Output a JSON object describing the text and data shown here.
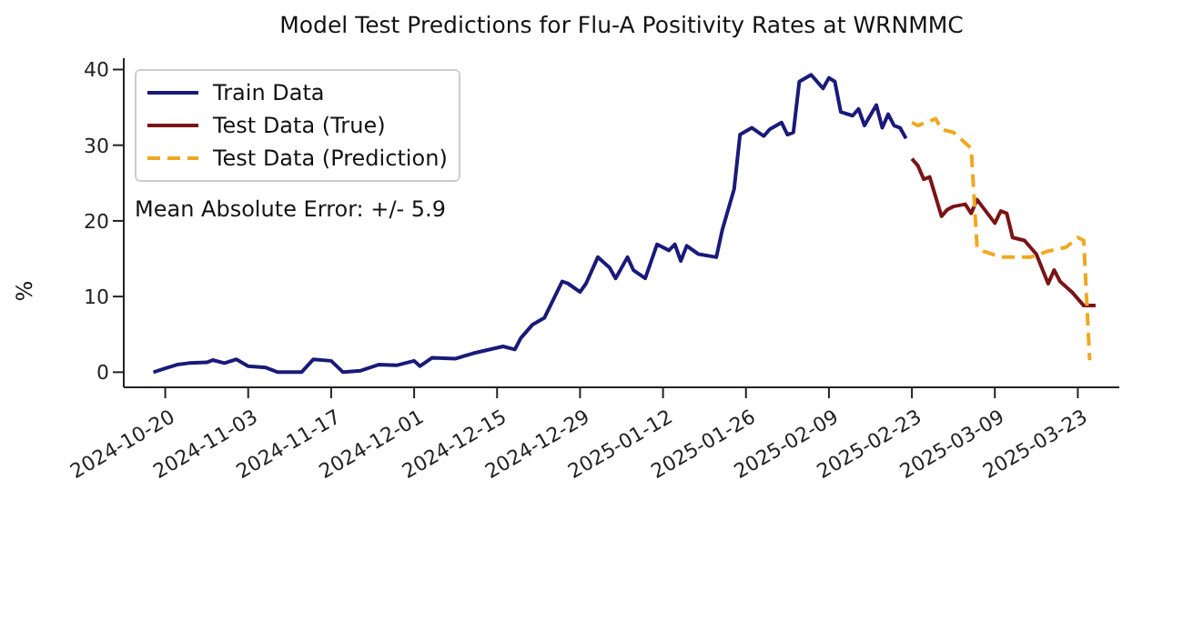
{
  "chart_data": {
    "type": "line",
    "title": "Model Test Predictions for Flu-A Positivity Rates at WRNMMC",
    "ylabel": "%",
    "annotations": [
      "Mean Absolute Error: +/- 5.9"
    ],
    "legend": "top left",
    "marker": "none",
    "xlim": [
      "2024-10-13",
      "2025-03-30"
    ],
    "xticks": [
      "2024-10-20",
      "2024-11-03",
      "2024-11-17",
      "2024-12-01",
      "2024-12-15",
      "2024-12-29",
      "2025-01-12",
      "2025-01-26",
      "2025-02-09",
      "2025-02-23",
      "2025-03-09",
      "2025-03-23"
    ],
    "ylim": [
      -2,
      41.5
    ],
    "yticks": [
      0,
      10,
      20,
      30,
      40
    ],
    "series": [
      {
        "name": "Train Data",
        "color": "#1a1a7a",
        "line_style": "solid",
        "x": [
          "2024-10-18",
          "2024-10-20",
          "2024-10-22",
          "2024-10-24",
          "2024-10-27",
          "2024-10-28",
          "2024-10-30",
          "2024-11-01",
          "2024-11-03",
          "2024-11-06",
          "2024-11-08",
          "2024-11-12",
          "2024-11-14",
          "2024-11-17",
          "2024-11-19",
          "2024-11-22",
          "2024-11-25",
          "2024-11-28",
          "2024-12-01",
          "2024-12-02",
          "2024-12-04",
          "2024-12-08",
          "2024-12-11",
          "2024-12-16",
          "2024-12-18",
          "2024-12-19",
          "2024-12-21",
          "2024-12-23",
          "2024-12-26",
          "2024-12-27",
          "2024-12-29",
          "2024-12-30",
          "2025-01-01",
          "2025-01-03",
          "2025-01-04",
          "2025-01-06",
          "2025-01-07",
          "2025-01-09",
          "2025-01-11",
          "2025-01-13",
          "2025-01-14",
          "2025-01-15",
          "2025-01-16",
          "2025-01-18",
          "2025-01-21",
          "2025-01-22",
          "2025-01-24",
          "2025-01-25",
          "2025-01-27",
          "2025-01-29",
          "2025-01-30",
          "2025-02-01",
          "2025-02-02",
          "2025-02-03",
          "2025-02-04",
          "2025-02-06",
          "2025-02-08",
          "2025-02-09",
          "2025-02-10",
          "2025-02-11",
          "2025-02-13",
          "2025-02-14",
          "2025-02-15",
          "2025-02-17",
          "2025-02-18",
          "2025-02-19",
          "2025-02-20",
          "2025-02-21",
          "2025-02-22"
        ],
        "values": [
          0,
          0.5,
          1,
          1.2,
          1.3,
          1.6,
          1.2,
          1.7,
          0.8,
          0.6,
          0,
          0,
          1.7,
          1.5,
          0,
          0.2,
          1,
          0.9,
          1.5,
          0.8,
          1.9,
          1.8,
          2.5,
          3.4,
          3,
          4.5,
          6.3,
          7.2,
          12,
          11.7,
          10.6,
          11.7,
          15.2,
          13.8,
          12.4,
          15.2,
          13.5,
          12.4,
          16.9,
          16.1,
          16.9,
          14.7,
          16.7,
          15.6,
          15.2,
          18.8,
          24.2,
          31.4,
          32.3,
          31.2,
          32.1,
          33,
          31.4,
          31.7,
          38.4,
          39.3,
          37.5,
          38.9,
          38.4,
          34.4,
          33.9,
          34.8,
          32.6,
          35.3,
          32.3,
          34.1,
          32.6,
          32.3,
          30.9
        ]
      },
      {
        "name": "Test Data (True)",
        "color": "#7a1515",
        "line_style": "solid",
        "x": [
          "2025-02-23",
          "2025-02-24",
          "2025-02-25",
          "2025-02-26",
          "2025-02-28",
          "2025-03-01",
          "2025-03-02",
          "2025-03-04",
          "2025-03-05",
          "2025-03-06",
          "2025-03-09",
          "2025-03-10",
          "2025-03-11",
          "2025-03-12",
          "2025-03-14",
          "2025-03-16",
          "2025-03-18",
          "2025-03-19",
          "2025-03-20",
          "2025-03-22",
          "2025-03-24",
          "2025-03-26"
        ],
        "values": [
          28.2,
          27.3,
          25.5,
          25.8,
          20.6,
          21.5,
          21.9,
          22.2,
          21,
          22.8,
          19.7,
          21.3,
          21,
          17.8,
          17.4,
          15.6,
          11.7,
          13.5,
          12,
          10.6,
          8.8,
          8.8
        ]
      },
      {
        "name": "Test Data (Prediction)",
        "color": "#f0a820",
        "line_style": "dashed",
        "x": [
          "2025-02-23",
          "2025-02-24",
          "2025-02-27",
          "2025-02-28",
          "2025-03-02",
          "2025-03-04",
          "2025-03-05",
          "2025-03-06",
          "2025-03-07",
          "2025-03-10",
          "2025-03-15",
          "2025-03-18",
          "2025-03-21",
          "2025-03-23",
          "2025-03-24",
          "2025-03-25"
        ],
        "values": [
          33,
          32.6,
          33.5,
          32.1,
          31.7,
          30.3,
          29.6,
          16.5,
          16,
          15.2,
          15.2,
          16,
          16.5,
          17.8,
          17.4,
          1.6
        ]
      }
    ]
  }
}
